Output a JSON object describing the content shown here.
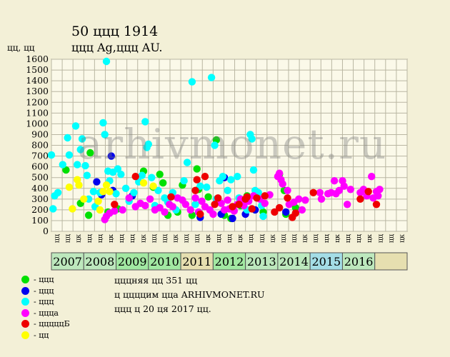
{
  "header": {
    "title": "50 ццц 1914",
    "subtitle": "ццц Ag,ццц AU."
  },
  "watermark": "arhivmonet.ru",
  "legend": [
    {
      "label": "- ццц",
      "color": "#00e000"
    },
    {
      "label": "- ццц",
      "color": "#0000ee"
    },
    {
      "label": "- ццц",
      "color": "#00ffff"
    },
    {
      "label": "- ццца",
      "color": "#ff00ff"
    },
    {
      "label": "- цццццБ",
      "color": "#ee0000"
    },
    {
      "label": "- цц",
      "color": "#ffff00"
    }
  ],
  "notes": [
    "цццняя цц 351 цц",
    "ц ццццим цца ARHIVMONET.RU",
    "ццц ц 20 ця 2017 цц."
  ],
  "chart_data": {
    "type": "scatter",
    "ylabel": "цц, цц",
    "ylim": [
      0,
      1600
    ],
    "yticks": [
      0,
      100,
      200,
      300,
      400,
      500,
      600,
      700,
      800,
      900,
      1000,
      1100,
      1200,
      1300,
      1400,
      1500,
      1600
    ],
    "grid": true,
    "quarter_labels": [
      "цц",
      "цц",
      "цк"
    ],
    "years": [
      {
        "label": "2007",
        "color": "#bde8bd"
      },
      {
        "label": "2008",
        "color": "#bde8bd"
      },
      {
        "label": "2009",
        "color": "#a2e8a2"
      },
      {
        "label": "2010",
        "color": "#a2e8a2"
      },
      {
        "label": "2011",
        "color": "#e6dfb0"
      },
      {
        "label": "2012",
        "color": "#a2e8a2"
      },
      {
        "label": "2013",
        "color": "#bde8bd"
      },
      {
        "label": "2014",
        "color": "#bde8bd"
      },
      {
        "label": "2015",
        "color": "#a4dde6"
      },
      {
        "label": "2016",
        "color": "#bde8bd"
      },
      {
        "label": "",
        "color": "#e6dfb0"
      }
    ],
    "series": [
      {
        "color": "#00e000",
        "points": [
          [
            2007.45,
            570
          ],
          [
            2007.9,
            260
          ],
          [
            2008.15,
            150
          ],
          [
            2008.2,
            730
          ],
          [
            2008.75,
            180
          ],
          [
            2009.05,
            210
          ],
          [
            2009.85,
            560
          ],
          [
            2010.15,
            410
          ],
          [
            2010.35,
            530
          ],
          [
            2010.45,
            450
          ],
          [
            2010.6,
            150
          ],
          [
            2010.9,
            180
          ],
          [
            2011.05,
            430
          ],
          [
            2011.35,
            150
          ],
          [
            2011.5,
            580
          ],
          [
            2011.55,
            390
          ],
          [
            2011.85,
            320
          ],
          [
            2012.1,
            850
          ],
          [
            2012.35,
            150
          ],
          [
            2012.55,
            120
          ],
          [
            2012.85,
            240
          ],
          [
            2013.05,
            330
          ],
          [
            2013.55,
            180
          ],
          [
            2014.2,
            380
          ],
          [
            2014.25,
            160
          ],
          [
            2014.05,
            530
          ],
          [
            2014.55,
            220
          ]
        ]
      },
      {
        "color": "#0000ee",
        "points": [
          [
            2008.4,
            460
          ],
          [
            2008.55,
            340
          ],
          [
            2008.85,
            700
          ],
          [
            2008.9,
            380
          ],
          [
            2009.5,
            330
          ],
          [
            2011.6,
            130
          ],
          [
            2012.25,
            160
          ],
          [
            2012.35,
            500
          ],
          [
            2012.6,
            120
          ],
          [
            2013.0,
            160
          ],
          [
            2013.3,
            200
          ],
          [
            2014.25,
            180
          ]
        ]
      },
      {
        "color": "#00ffff",
        "points": [
          [
            2007.0,
            710
          ],
          [
            2007.05,
            210
          ],
          [
            2007.1,
            330
          ],
          [
            2007.2,
            360
          ],
          [
            2007.35,
            620
          ],
          [
            2007.5,
            870
          ],
          [
            2007.55,
            710
          ],
          [
            2007.75,
            980
          ],
          [
            2007.8,
            620
          ],
          [
            2007.9,
            760
          ],
          [
            2007.95,
            860
          ],
          [
            2008.05,
            610
          ],
          [
            2008.1,
            520
          ],
          [
            2008.15,
            300
          ],
          [
            2008.3,
            370
          ],
          [
            2008.35,
            230
          ],
          [
            2008.5,
            360
          ],
          [
            2008.6,
            1010
          ],
          [
            2008.65,
            900
          ],
          [
            2008.7,
            1580
          ],
          [
            2008.75,
            560
          ],
          [
            2008.8,
            470
          ],
          [
            2008.9,
            550
          ],
          [
            2009.0,
            350
          ],
          [
            2009.05,
            580
          ],
          [
            2009.15,
            530
          ],
          [
            2009.3,
            400
          ],
          [
            2009.4,
            280
          ],
          [
            2009.55,
            360
          ],
          [
            2009.7,
            460
          ],
          [
            2009.8,
            520
          ],
          [
            2009.9,
            1020
          ],
          [
            2009.95,
            780
          ],
          [
            2010.0,
            810
          ],
          [
            2010.1,
            500
          ],
          [
            2010.2,
            240
          ],
          [
            2010.3,
            380
          ],
          [
            2010.5,
            310
          ],
          [
            2010.6,
            270
          ],
          [
            2010.75,
            360
          ],
          [
            2010.85,
            200
          ],
          [
            2011.1,
            470
          ],
          [
            2011.2,
            640
          ],
          [
            2011.35,
            1390
          ],
          [
            2011.45,
            250
          ],
          [
            2011.6,
            420
          ],
          [
            2011.8,
            410
          ],
          [
            2011.95,
            1430
          ],
          [
            2012.05,
            800
          ],
          [
            2012.1,
            300
          ],
          [
            2012.2,
            470
          ],
          [
            2012.3,
            510
          ],
          [
            2012.45,
            380
          ],
          [
            2012.55,
            480
          ],
          [
            2012.75,
            510
          ],
          [
            2012.8,
            310
          ],
          [
            2012.9,
            270
          ],
          [
            2013.05,
            200
          ],
          [
            2013.15,
            900
          ],
          [
            2013.2,
            860
          ],
          [
            2013.25,
            570
          ],
          [
            2013.3,
            380
          ],
          [
            2013.4,
            360
          ],
          [
            2013.5,
            240
          ],
          [
            2013.55,
            140
          ]
        ]
      },
      {
        "color": "#ff00ff",
        "points": [
          [
            2008.65,
            110
          ],
          [
            2008.7,
            140
          ],
          [
            2008.8,
            170
          ],
          [
            2008.95,
            190
          ],
          [
            2009.2,
            200
          ],
          [
            2009.4,
            310
          ],
          [
            2009.6,
            230
          ],
          [
            2009.75,
            260
          ],
          [
            2009.9,
            240
          ],
          [
            2010.05,
            300
          ],
          [
            2010.2,
            200
          ],
          [
            2010.35,
            220
          ],
          [
            2010.5,
            180
          ],
          [
            2010.65,
            250
          ],
          [
            2010.75,
            230
          ],
          [
            2010.9,
            310
          ],
          [
            2011.05,
            290
          ],
          [
            2011.15,
            250
          ],
          [
            2011.3,
            200
          ],
          [
            2011.45,
            310
          ],
          [
            2011.55,
            180
          ],
          [
            2011.65,
            280
          ],
          [
            2011.75,
            230
          ],
          [
            2011.9,
            200
          ],
          [
            2012.0,
            160
          ],
          [
            2012.15,
            280
          ],
          [
            2012.25,
            260
          ],
          [
            2012.35,
            200
          ],
          [
            2012.45,
            290
          ],
          [
            2012.5,
            210
          ],
          [
            2012.65,
            190
          ],
          [
            2012.75,
            250
          ],
          [
            2012.85,
            300
          ],
          [
            2012.95,
            240
          ],
          [
            2013.1,
            280
          ],
          [
            2013.25,
            330
          ],
          [
            2013.45,
            300
          ],
          [
            2013.6,
            260
          ],
          [
            2013.75,
            340
          ],
          [
            2014.0,
            510
          ],
          [
            2014.05,
            540
          ],
          [
            2014.1,
            480
          ],
          [
            2014.15,
            440
          ],
          [
            2014.3,
            380
          ],
          [
            2014.35,
            250
          ],
          [
            2014.5,
            270
          ],
          [
            2014.65,
            300
          ],
          [
            2014.75,
            200
          ],
          [
            2014.85,
            290
          ],
          [
            2015.3,
            360
          ],
          [
            2015.35,
            300
          ],
          [
            2015.55,
            350
          ],
          [
            2015.65,
            360
          ],
          [
            2015.75,
            470
          ],
          [
            2015.8,
            350
          ],
          [
            2015.9,
            380
          ],
          [
            2016.0,
            470
          ],
          [
            2016.05,
            420
          ],
          [
            2016.15,
            250
          ],
          [
            2016.25,
            390
          ],
          [
            2016.55,
            360
          ],
          [
            2016.65,
            390
          ],
          [
            2016.75,
            330
          ],
          [
            2016.9,
            510
          ],
          [
            2016.95,
            310
          ],
          [
            2017.05,
            370
          ],
          [
            2017.15,
            390
          ],
          [
            2017.1,
            330
          ]
        ]
      },
      {
        "color": "#ee0000",
        "points": [
          [
            2008.95,
            250
          ],
          [
            2009.6,
            510
          ],
          [
            2010.7,
            320
          ],
          [
            2011.45,
            380
          ],
          [
            2011.5,
            480
          ],
          [
            2011.75,
            510
          ],
          [
            2011.6,
            160
          ],
          [
            2012.05,
            250
          ],
          [
            2012.15,
            310
          ],
          [
            2012.6,
            230
          ],
          [
            2012.8,
            250
          ],
          [
            2013.0,
            300
          ],
          [
            2013.05,
            320
          ],
          [
            2013.2,
            210
          ],
          [
            2013.35,
            310
          ],
          [
            2013.6,
            330
          ],
          [
            2013.9,
            180
          ],
          [
            2014.05,
            220
          ],
          [
            2014.3,
            310
          ],
          [
            2014.45,
            130
          ],
          [
            2014.55,
            170
          ],
          [
            2015.1,
            360
          ],
          [
            2016.55,
            300
          ],
          [
            2016.8,
            370
          ],
          [
            2017.05,
            250
          ]
        ]
      },
      {
        "color": "#ffff00",
        "points": [
          [
            2007.55,
            410
          ],
          [
            2007.65,
            210
          ],
          [
            2007.8,
            480
          ],
          [
            2007.85,
            430
          ],
          [
            2008.0,
            300
          ],
          [
            2008.45,
            280
          ],
          [
            2008.5,
            200
          ],
          [
            2008.6,
            370
          ],
          [
            2008.7,
            430
          ],
          [
            2008.8,
            370
          ],
          [
            2009.85,
            450
          ],
          [
            2010.15,
            420
          ]
        ]
      }
    ]
  }
}
